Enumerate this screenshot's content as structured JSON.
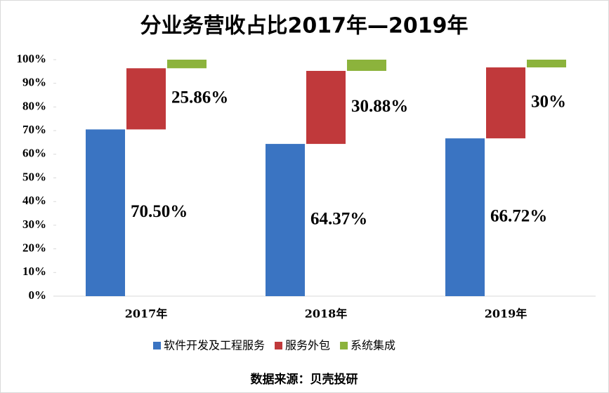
{
  "chart_data": {
    "type": "waterfall-bar",
    "title": "分业务营收占比2017年—2019年",
    "categories": [
      "2017年",
      "2018年",
      "2019年"
    ],
    "series": [
      {
        "name": "软件开发及工程服务",
        "color": "#3a74c2",
        "values": [
          70.5,
          64.37,
          66.72
        ],
        "value_labels": [
          "70.50%",
          "64.37%",
          "66.72%"
        ]
      },
      {
        "name": "服务外包",
        "color": "#c0393b",
        "values": [
          25.86,
          30.88,
          30
        ],
        "value_labels": [
          "25.86%",
          "30.88%",
          "30%"
        ]
      },
      {
        "name": "系统集成",
        "color": "#8cb33c",
        "values": [
          3.64,
          4.75,
          3.28
        ]
      }
    ],
    "ylim": [
      0,
      100
    ],
    "yticks": [
      {
        "value": 0,
        "label": "0%"
      },
      {
        "value": 10,
        "label": "10%"
      },
      {
        "value": 20,
        "label": "20%"
      },
      {
        "value": 30,
        "label": "30%"
      },
      {
        "value": 40,
        "label": "40%"
      },
      {
        "value": 50,
        "label": "50%"
      },
      {
        "value": 60,
        "label": "60%"
      },
      {
        "value": 70,
        "label": "70%"
      },
      {
        "value": 80,
        "label": "80%"
      },
      {
        "value": 90,
        "label": "90%"
      },
      {
        "value": 100,
        "label": "100%"
      }
    ],
    "legend": "bottom",
    "source": "数据来源：贝壳投研"
  }
}
